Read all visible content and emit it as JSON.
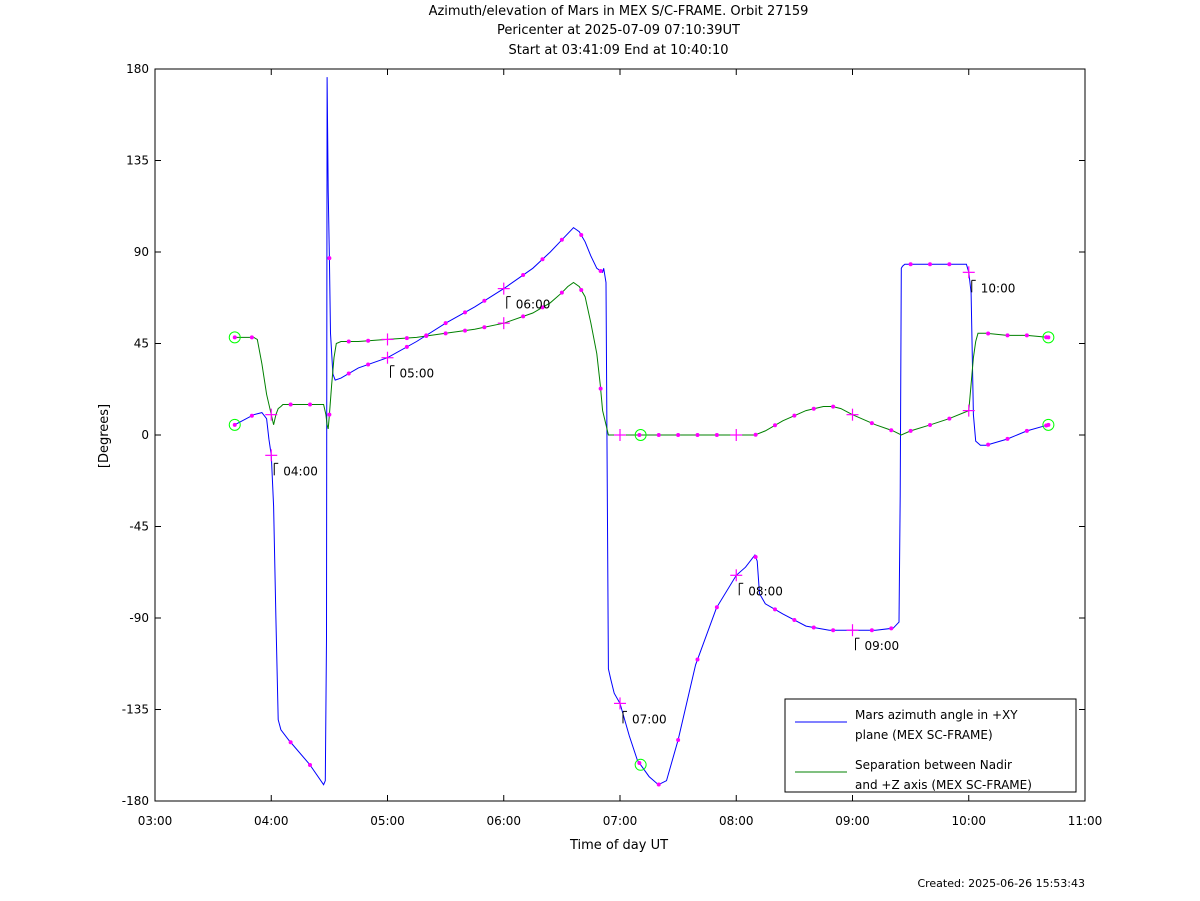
{
  "chart_data": {
    "type": "line",
    "title": "Azimuth/elevation of Mars in MEX S/C-FRAME.  Orbit 27159",
    "subtitle": [
      "Pericenter at 2025-07-09 07:10:39UT",
      "Start at 03:41:09 End at 10:40:10"
    ],
    "xlabel": "Time of day UT",
    "ylabel": "[Degrees]",
    "xlim": [
      3.0,
      11.0
    ],
    "ylim": [
      -180,
      180
    ],
    "xticks": [
      "03:00",
      "04:00",
      "05:00",
      "06:00",
      "07:00",
      "08:00",
      "09:00",
      "10:00",
      "11:00"
    ],
    "yticks": [
      180,
      135,
      90,
      45,
      0,
      -45,
      -90,
      -135,
      -180
    ],
    "grid": false,
    "legend_position": "bottom-right",
    "hour_annotations": [
      "04:00",
      "05:00",
      "06:00",
      "07:00",
      "08:00",
      "09:00",
      "10:00"
    ],
    "series": [
      {
        "name": "Mars azimuth angle in +XY plane (MEX SC-FRAME)",
        "legend_lines": [
          "Mars azimuth angle in +XY",
          "plane (MEX SC-FRAME)"
        ],
        "color": "#0000ff",
        "x": [
          3.686,
          3.85,
          3.92,
          3.96,
          3.98,
          4.0,
          4.02,
          4.04,
          4.06,
          4.083,
          4.15,
          4.33,
          4.45,
          4.465,
          4.475,
          4.48,
          4.49,
          4.5,
          4.51,
          4.53,
          4.55,
          4.6,
          4.75,
          5.0,
          5.25,
          5.5,
          5.75,
          6.0,
          6.25,
          6.4,
          6.5,
          6.6,
          6.65,
          6.7,
          6.75,
          6.8,
          6.85,
          6.86,
          6.88,
          6.9,
          6.92,
          6.95,
          7.0,
          7.08,
          7.15,
          7.25,
          7.33,
          7.4,
          7.5,
          7.65,
          7.83,
          8.0,
          8.08,
          8.16,
          8.18,
          8.2,
          8.25,
          8.4,
          8.6,
          8.8,
          9.0,
          9.2,
          9.35,
          9.4,
          9.41,
          9.42,
          9.43,
          9.45,
          9.55,
          9.67,
          9.83,
          9.98,
          10.0,
          10.02,
          10.04,
          10.06,
          10.1,
          10.15,
          10.33,
          10.5,
          10.685
        ],
        "y": [
          5,
          10,
          11,
          8,
          -2,
          -10,
          -35,
          -90,
          -140,
          -145,
          -150,
          -162,
          -172,
          -170,
          -100,
          176,
          120,
          87,
          50,
          30,
          27,
          28,
          33,
          38,
          46,
          55,
          63,
          72,
          82,
          90,
          96,
          102,
          100,
          95,
          88,
          82,
          80,
          82,
          75,
          -115,
          -120,
          -127,
          -132,
          -148,
          -160,
          -168,
          -172,
          -170,
          -150,
          -113,
          -85,
          -69,
          -65,
          -59,
          -62,
          -78,
          -83,
          -88,
          -94,
          -96,
          -96,
          -96,
          -95,
          -92,
          -30,
          82,
          83,
          84,
          84,
          84,
          84,
          84,
          80,
          70,
          10,
          -3,
          -5,
          -5,
          -2,
          2,
          5
        ]
      },
      {
        "name": "Separation between Nadir and +Z axis (MEX SC-FRAME)",
        "legend_lines": [
          "Separation between Nadir",
          "and +Z axis (MEX SC-FRAME)"
        ],
        "color": "#008000",
        "x": [
          3.686,
          3.85,
          3.88,
          3.92,
          3.96,
          4.0,
          4.02,
          4.04,
          4.06,
          4.083,
          4.1,
          4.15,
          4.33,
          4.45,
          4.47,
          4.48,
          4.49,
          4.5,
          4.52,
          4.54,
          4.56,
          4.6,
          4.75,
          5.0,
          5.25,
          5.5,
          5.75,
          6.0,
          6.25,
          6.4,
          6.5,
          6.55,
          6.6,
          6.65,
          6.7,
          6.75,
          6.8,
          6.83,
          6.85,
          6.88,
          6.9,
          7.0,
          7.17,
          7.33,
          7.5,
          8.0,
          8.16,
          8.25,
          8.4,
          8.6,
          8.75,
          8.83,
          8.9,
          9.0,
          9.2,
          9.35,
          9.42,
          9.5,
          9.67,
          9.83,
          10.0,
          10.02,
          10.04,
          10.06,
          10.08,
          10.15,
          10.33,
          10.5,
          10.685
        ],
        "y": [
          48,
          48,
          47,
          35,
          20,
          10,
          5,
          10,
          13,
          14,
          15,
          15,
          15,
          15,
          10,
          5,
          3,
          10,
          25,
          38,
          45,
          46,
          46,
          47,
          48,
          50,
          52,
          55,
          60,
          65,
          70,
          73,
          75,
          73,
          68,
          55,
          40,
          25,
          12,
          5,
          0,
          0,
          0,
          0,
          0,
          0,
          0,
          2,
          7,
          12,
          14,
          14,
          13,
          10,
          5,
          2,
          0,
          2,
          5,
          8,
          12,
          25,
          38,
          46,
          50,
          50,
          49,
          49,
          48
        ]
      }
    ]
  },
  "markers": {
    "dot_color": "#ff00ff",
    "circle_color": "#00ff00"
  },
  "footer": {
    "created": "Created: 2025-06-26 15:53:43"
  }
}
